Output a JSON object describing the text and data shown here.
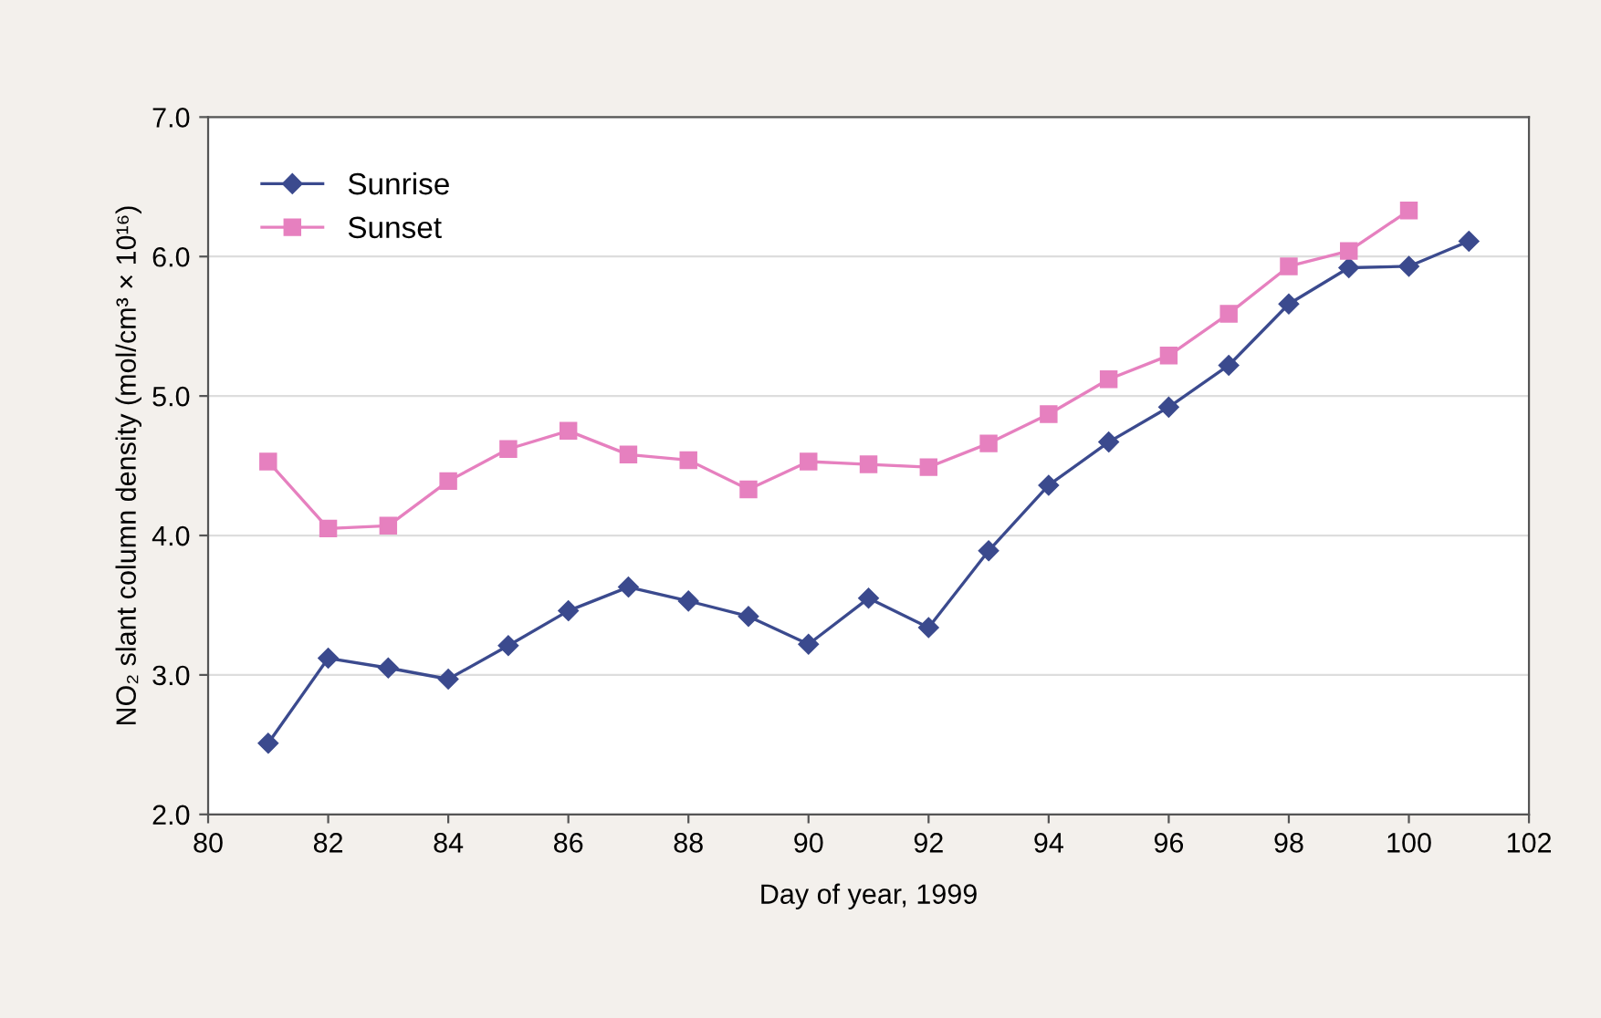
{
  "chart_data": {
    "type": "line",
    "xlabel": "Day of year, 1999",
    "ylabel": "NO₂ slant column density (mol/cm³ × 10¹⁶)",
    "xlim": [
      80,
      102
    ],
    "xticks": [
      80,
      82,
      84,
      86,
      88,
      90,
      92,
      94,
      96,
      98,
      100,
      102
    ],
    "ylim": [
      2.0,
      7.0
    ],
    "yticks": [
      {
        "value": 2,
        "label": "2.0"
      },
      {
        "value": 3,
        "label": "3.0"
      },
      {
        "value": 4,
        "label": "4.0"
      },
      {
        "value": 5,
        "label": "5.0"
      },
      {
        "value": 6,
        "label": "6.0"
      },
      {
        "value": 7,
        "label": "7.0"
      }
    ],
    "grid": "y",
    "legend": "top left",
    "line_style": "solid",
    "series": [
      {
        "name": "Sunrise",
        "color": "#3b4a8e",
        "marker": "diamond",
        "x": [
          81,
          82,
          83,
          84,
          85,
          86,
          87,
          88,
          89,
          90,
          91,
          92,
          93,
          94,
          95,
          96,
          97,
          98,
          99,
          100,
          101
        ],
        "values": [
          2.51,
          3.12,
          3.05,
          2.97,
          3.21,
          3.46,
          3.63,
          3.53,
          3.42,
          3.22,
          3.55,
          3.34,
          3.89,
          4.36,
          4.67,
          4.92,
          5.22,
          5.66,
          5.92,
          5.93,
          6.11
        ]
      },
      {
        "name": "Sunset",
        "color": "#e680bf",
        "marker": "square",
        "x": [
          81,
          82,
          83,
          84,
          85,
          86,
          87,
          88,
          89,
          90,
          91,
          92,
          93,
          94,
          95,
          96,
          97,
          98,
          99,
          100
        ],
        "values": [
          4.53,
          4.05,
          4.07,
          4.39,
          4.62,
          4.75,
          4.58,
          4.54,
          4.33,
          4.53,
          4.51,
          4.49,
          4.66,
          4.87,
          5.12,
          5.29,
          5.59,
          5.93,
          6.04,
          6.33
        ]
      }
    ]
  }
}
